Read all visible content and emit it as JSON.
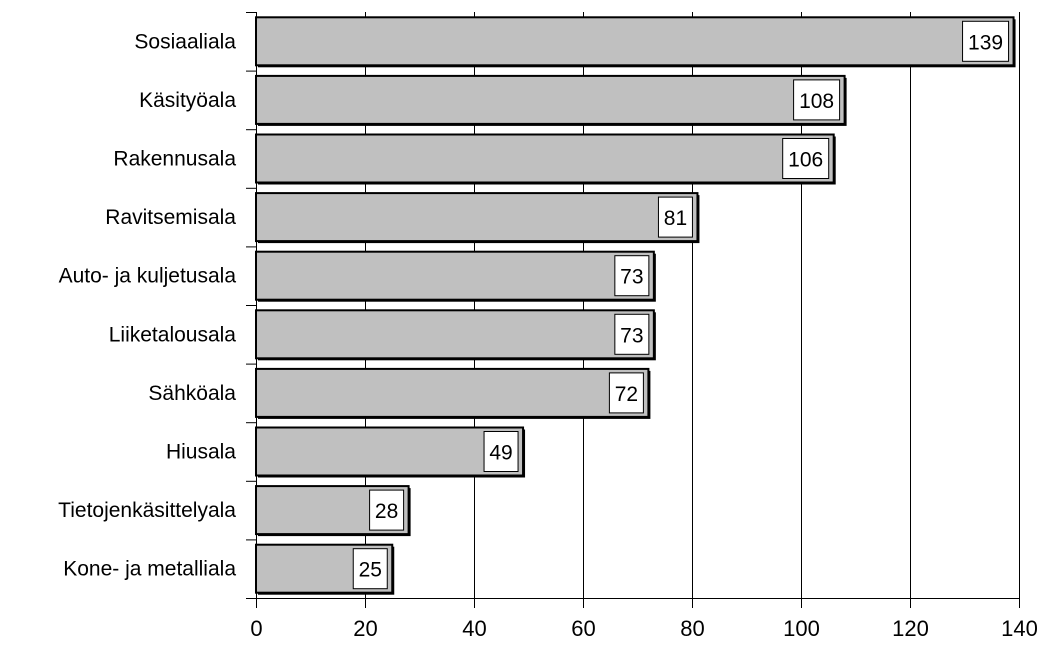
{
  "chart_data": {
    "type": "bar",
    "orientation": "horizontal",
    "categories": [
      "Sosiaaliala",
      "Käsityöala",
      "Rakennusala",
      "Ravitsemisala",
      "Auto- ja kuljetusala",
      "Liiketalousala",
      "Sähköala",
      "Hiusala",
      "Tietojenkäsittelyala",
      "Kone- ja metalliala"
    ],
    "values": [
      139,
      108,
      106,
      81,
      73,
      73,
      72,
      49,
      28,
      25
    ],
    "xlim": [
      0,
      140
    ],
    "xticks": [
      0,
      20,
      40,
      60,
      80,
      100,
      120,
      140
    ],
    "grid": "vertical",
    "data_labels": "inside-end",
    "colors": {
      "bar": "#c0c0c0",
      "border": "#000000",
      "gridline": "#000000",
      "label_box": "#ffffff"
    }
  }
}
